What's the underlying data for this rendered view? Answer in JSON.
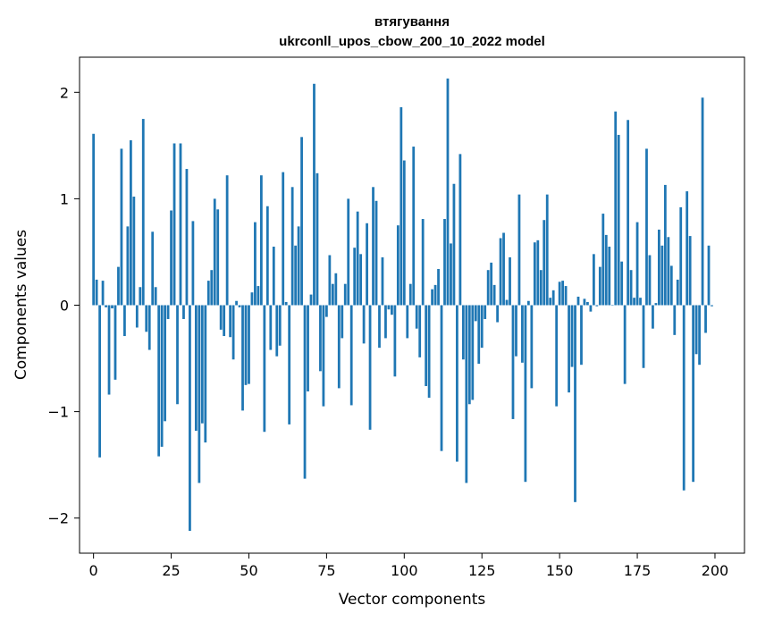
{
  "chart_data": {
    "type": "bar",
    "title": "втягування",
    "subtitle": "ukrconll_upos_cbow_200_10_2022 model",
    "xlabel": "Vector components",
    "ylabel": "Components values",
    "xlim": [
      -4.5,
      209.5
    ],
    "ylim": [
      -2.33,
      2.33
    ],
    "xticks": [
      0,
      25,
      50,
      75,
      100,
      125,
      150,
      175,
      200
    ],
    "yticks": [
      -2,
      -1,
      0,
      1,
      2
    ],
    "ytick_labels": [
      "−2",
      "−1",
      "0",
      "1",
      "2"
    ],
    "bar_color": "#1f77b4",
    "series": [
      {
        "name": "втягування",
        "values": [
          1.61,
          0.24,
          -1.43,
          0.23,
          -0.02,
          -0.84,
          -0.03,
          -0.7,
          0.36,
          1.47,
          -0.29,
          0.74,
          1.55,
          1.02,
          -0.21,
          0.17,
          1.75,
          -0.25,
          -0.42,
          0.69,
          0.17,
          -1.42,
          -1.33,
          -1.09,
          -0.13,
          0.89,
          1.52,
          -0.93,
          1.52,
          -0.13,
          1.28,
          -2.12,
          0.79,
          -1.18,
          -1.67,
          -1.11,
          -1.29,
          0.23,
          0.33,
          1.0,
          0.9,
          -0.23,
          -0.29,
          1.22,
          -0.3,
          -0.51,
          0.04,
          -0.02,
          -0.99,
          -0.75,
          -0.74,
          0.12,
          0.78,
          0.18,
          1.22,
          -1.19,
          0.93,
          -0.42,
          0.55,
          -0.48,
          -0.38,
          1.25,
          0.03,
          -1.12,
          1.11,
          0.56,
          0.74,
          1.58,
          -1.63,
          -0.81,
          0.1,
          2.08,
          1.24,
          -0.62,
          -0.95,
          -0.11,
          0.47,
          0.2,
          0.3,
          -0.78,
          -0.31,
          0.2,
          1.0,
          -0.94,
          0.54,
          0.88,
          0.48,
          -0.36,
          0.77,
          -1.17,
          1.11,
          0.98,
          -0.4,
          0.45,
          -0.31,
          -0.04,
          -0.09,
          -0.67,
          0.75,
          1.86,
          1.36,
          -0.31,
          0.2,
          1.49,
          -0.22,
          -0.49,
          0.81,
          -0.76,
          -0.87,
          0.15,
          0.19,
          0.34,
          -1.37,
          0.81,
          2.13,
          0.58,
          1.14,
          -1.47,
          1.42,
          -0.51,
          -1.67,
          -0.93,
          -0.89,
          -0.15,
          -0.55,
          -0.4,
          -0.13,
          0.33,
          0.4,
          0.19,
          -0.16,
          0.63,
          0.68,
          0.05,
          0.45,
          -1.07,
          -0.48,
          1.04,
          -0.54,
          -1.66,
          0.04,
          -0.78,
          0.59,
          0.61,
          0.33,
          0.8,
          1.04,
          0.07,
          0.14,
          -0.95,
          0.22,
          0.23,
          0.18,
          -0.82,
          -0.58,
          -1.85,
          0.08,
          -0.56,
          0.06,
          0.03,
          -0.06,
          0.48,
          -0.01,
          0.36,
          0.86,
          0.66,
          0.55,
          0.0,
          1.82,
          1.6,
          0.41,
          -0.74,
          1.74,
          0.33,
          0.07,
          0.78,
          0.07,
          -0.59,
          1.47,
          0.47,
          -0.22,
          0.02,
          0.71,
          0.56,
          1.13,
          0.64,
          0.37,
          -0.28,
          0.24,
          0.92,
          -1.74,
          1.07,
          0.65,
          -1.66,
          -0.46,
          -0.56,
          1.95,
          -0.26,
          0.56,
          -0.01
        ]
      }
    ]
  }
}
